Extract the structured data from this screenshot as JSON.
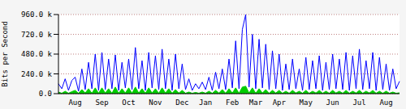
{
  "chart_data": {
    "type": "line",
    "y_label": "Bits per Second",
    "categories": [
      null,
      null,
      null,
      null,
      null,
      "Aug",
      null,
      null,
      null,
      null,
      null,
      null,
      null,
      "Sep",
      null,
      null,
      null,
      null,
      null,
      null,
      null,
      "Oct",
      null,
      null,
      null,
      null,
      null,
      null,
      null,
      "Nov",
      null,
      null,
      null,
      null,
      null,
      null,
      null,
      "Dec",
      null,
      null,
      null,
      null,
      null,
      null,
      "Jan",
      null,
      null,
      null,
      null,
      null,
      null,
      null,
      "Feb",
      null,
      null,
      null,
      null,
      null,
      null,
      "Mar",
      null,
      null,
      null,
      null,
      null,
      null,
      "Apr",
      null,
      null,
      null,
      null,
      null,
      null,
      null,
      "May",
      null,
      null,
      null,
      null,
      null,
      null,
      null,
      "Jun",
      null,
      null,
      null,
      null,
      null,
      null,
      null,
      "Jul",
      null,
      null,
      null,
      null,
      null,
      null,
      null,
      "Aug",
      null,
      null,
      null,
      null
    ],
    "series": [
      {
        "type": "area",
        "color": "#00cc00",
        "values": [
          20000,
          5000,
          30000,
          5000,
          25000,
          40000,
          5000,
          50000,
          8000,
          60000,
          5000,
          70000,
          5000,
          70000,
          8000,
          60000,
          5000,
          80000,
          5000,
          60000,
          8000,
          70000,
          5000,
          80000,
          8000,
          60000,
          5000,
          70000,
          8000,
          60000,
          5000,
          70000,
          8000,
          60000,
          5000,
          50000,
          8000,
          40000,
          5000,
          20000,
          5000,
          15000,
          5000,
          20000,
          5000,
          30000,
          5000,
          40000,
          8000,
          50000,
          5000,
          60000,
          8000,
          70000,
          5000,
          80000,
          90000,
          8000,
          70000,
          5000,
          60000,
          8000,
          50000,
          5000,
          40000,
          8000,
          40000,
          5000,
          30000,
          5000,
          40000,
          8000,
          30000,
          5000,
          40000,
          5000,
          30000,
          8000,
          40000,
          5000,
          30000,
          5000,
          40000,
          8000,
          30000,
          5000,
          40000,
          5000,
          30000,
          8000,
          40000,
          5000,
          30000,
          8000,
          40000,
          5000,
          30000,
          5000,
          30000,
          5000,
          20000,
          5000,
          10000
        ]
      },
      {
        "type": "line",
        "color": "#0000ff",
        "values": [
          120000,
          60000,
          180000,
          40000,
          160000,
          200000,
          30000,
          300000,
          50000,
          380000,
          60000,
          480000,
          40000,
          500000,
          50000,
          420000,
          60000,
          470000,
          40000,
          380000,
          70000,
          420000,
          50000,
          560000,
          60000,
          400000,
          40000,
          500000,
          70000,
          460000,
          50000,
          540000,
          60000,
          420000,
          40000,
          480000,
          60000,
          360000,
          50000,
          180000,
          40000,
          120000,
          60000,
          140000,
          50000,
          200000,
          40000,
          260000,
          60000,
          300000,
          50000,
          420000,
          70000,
          640000,
          60000,
          780000,
          960000,
          80000,
          720000,
          60000,
          660000,
          70000,
          600000,
          50000,
          520000,
          60000,
          480000,
          40000,
          360000,
          50000,
          420000,
          60000,
          300000,
          40000,
          440000,
          50000,
          400000,
          60000,
          460000,
          40000,
          380000,
          50000,
          480000,
          60000,
          420000,
          50000,
          500000,
          40000,
          460000,
          60000,
          540000,
          50000,
          400000,
          60000,
          500000,
          40000,
          440000,
          50000,
          360000,
          40000,
          300000,
          60000,
          150000
        ]
      }
    ],
    "ylim": [
      0,
      960000
    ],
    "yticks": [
      {
        "value": 0,
        "label": "0.0"
      },
      {
        "value": 240000,
        "label": "240.0 k"
      },
      {
        "value": 480000,
        "label": "480.0 k"
      },
      {
        "value": 720000,
        "label": "720.0 k"
      },
      {
        "value": 960000,
        "label": "960.0 k"
      }
    ],
    "grid": true
  }
}
